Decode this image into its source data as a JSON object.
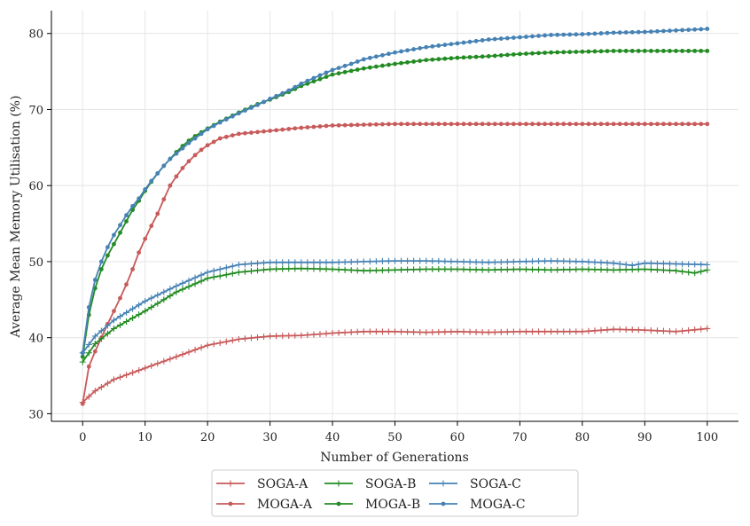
{
  "chart_data": {
    "type": "line",
    "title": "",
    "xlabel": "Number of Generations",
    "ylabel": "Average Mean Memory Utilisation (%)",
    "xlim": [
      -5,
      105
    ],
    "ylim": [
      29,
      83
    ],
    "xticks": [
      0,
      10,
      20,
      30,
      40,
      50,
      60,
      70,
      80,
      90,
      100
    ],
    "yticks": [
      30,
      40,
      50,
      60,
      70,
      80
    ],
    "grid": true,
    "legend_position": "bottom-center",
    "series": [
      {
        "name": "SOGA-A",
        "color": "#c85a5a",
        "marker": "plus",
        "points": [
          [
            0,
            31.5
          ],
          [
            2,
            33.0
          ],
          [
            5,
            34.5
          ],
          [
            10,
            36.0
          ],
          [
            15,
            37.5
          ],
          [
            20,
            39.0
          ],
          [
            25,
            39.8
          ],
          [
            30,
            40.2
          ],
          [
            35,
            40.3
          ],
          [
            40,
            40.6
          ],
          [
            45,
            40.8
          ],
          [
            50,
            40.8
          ],
          [
            55,
            40.7
          ],
          [
            60,
            40.8
          ],
          [
            65,
            40.7
          ],
          [
            70,
            40.8
          ],
          [
            75,
            40.8
          ],
          [
            80,
            40.8
          ],
          [
            85,
            41.1
          ],
          [
            90,
            41.0
          ],
          [
            95,
            40.8
          ],
          [
            100,
            41.2
          ]
        ]
      },
      {
        "name": "MOGA-A",
        "color": "#c85a5a",
        "marker": "dot",
        "points": [
          [
            0,
            31.3
          ],
          [
            1,
            36.2
          ],
          [
            2,
            38.2
          ],
          [
            3,
            40.0
          ],
          [
            4,
            41.8
          ],
          [
            5,
            43.5
          ],
          [
            6,
            45.2
          ],
          [
            7,
            47.0
          ],
          [
            8,
            49.0
          ],
          [
            9,
            51.2
          ],
          [
            10,
            53.0
          ],
          [
            11,
            54.7
          ],
          [
            12,
            56.3
          ],
          [
            13,
            58.2
          ],
          [
            14,
            60.0
          ],
          [
            15,
            61.2
          ],
          [
            16,
            62.3
          ],
          [
            17,
            63.2
          ],
          [
            18,
            64.0
          ],
          [
            19,
            64.7
          ],
          [
            20,
            65.3
          ],
          [
            22,
            66.2
          ],
          [
            25,
            66.8
          ],
          [
            30,
            67.2
          ],
          [
            35,
            67.6
          ],
          [
            40,
            67.9
          ],
          [
            45,
            68.0
          ],
          [
            50,
            68.1
          ],
          [
            60,
            68.1
          ],
          [
            70,
            68.1
          ],
          [
            80,
            68.1
          ],
          [
            90,
            68.1
          ],
          [
            100,
            68.1
          ]
        ]
      },
      {
        "name": "SOGA-B",
        "color": "#228b22",
        "marker": "plus",
        "points": [
          [
            0,
            36.8
          ],
          [
            2,
            39.2
          ],
          [
            5,
            41.2
          ],
          [
            10,
            43.5
          ],
          [
            15,
            46.0
          ],
          [
            20,
            47.8
          ],
          [
            25,
            48.6
          ],
          [
            30,
            49.0
          ],
          [
            35,
            49.1
          ],
          [
            40,
            49.0
          ],
          [
            45,
            48.8
          ],
          [
            50,
            48.9
          ],
          [
            55,
            49.0
          ],
          [
            60,
            49.0
          ],
          [
            65,
            48.9
          ],
          [
            70,
            49.0
          ],
          [
            75,
            48.9
          ],
          [
            80,
            49.0
          ],
          [
            85,
            48.9
          ],
          [
            90,
            49.0
          ],
          [
            95,
            48.8
          ],
          [
            98,
            48.5
          ],
          [
            100,
            48.9
          ]
        ]
      },
      {
        "name": "MOGA-B",
        "color": "#228b22",
        "marker": "dot",
        "points": [
          [
            0,
            37.5
          ],
          [
            1,
            43.0
          ],
          [
            2,
            46.5
          ],
          [
            3,
            49.0
          ],
          [
            4,
            50.8
          ],
          [
            5,
            52.3
          ],
          [
            6,
            53.8
          ],
          [
            7,
            55.3
          ],
          [
            8,
            56.8
          ],
          [
            9,
            58.0
          ],
          [
            10,
            59.3
          ],
          [
            11,
            60.5
          ],
          [
            12,
            61.6
          ],
          [
            13,
            62.6
          ],
          [
            14,
            63.5
          ],
          [
            15,
            64.4
          ],
          [
            16,
            65.2
          ],
          [
            17,
            65.9
          ],
          [
            18,
            66.5
          ],
          [
            19,
            67.0
          ],
          [
            20,
            67.5
          ],
          [
            22,
            68.4
          ],
          [
            25,
            69.6
          ],
          [
            28,
            70.7
          ],
          [
            30,
            71.3
          ],
          [
            33,
            72.3
          ],
          [
            35,
            73.1
          ],
          [
            38,
            74.0
          ],
          [
            40,
            74.6
          ],
          [
            45,
            75.4
          ],
          [
            50,
            76.0
          ],
          [
            55,
            76.5
          ],
          [
            60,
            76.8
          ],
          [
            65,
            77.0
          ],
          [
            70,
            77.3
          ],
          [
            75,
            77.5
          ],
          [
            80,
            77.6
          ],
          [
            85,
            77.7
          ],
          [
            90,
            77.7
          ],
          [
            95,
            77.7
          ],
          [
            100,
            77.7
          ]
        ]
      },
      {
        "name": "SOGA-C",
        "color": "#4682b4",
        "marker": "plus",
        "points": [
          [
            0,
            38.0
          ],
          [
            2,
            40.2
          ],
          [
            5,
            42.3
          ],
          [
            10,
            44.8
          ],
          [
            15,
            46.8
          ],
          [
            20,
            48.6
          ],
          [
            25,
            49.6
          ],
          [
            30,
            49.9
          ],
          [
            35,
            49.9
          ],
          [
            40,
            49.9
          ],
          [
            45,
            50.0
          ],
          [
            50,
            50.1
          ],
          [
            55,
            50.1
          ],
          [
            60,
            50.0
          ],
          [
            65,
            49.9
          ],
          [
            70,
            50.0
          ],
          [
            75,
            50.1
          ],
          [
            80,
            50.0
          ],
          [
            85,
            49.8
          ],
          [
            88,
            49.5
          ],
          [
            90,
            49.8
          ],
          [
            95,
            49.7
          ],
          [
            100,
            49.6
          ]
        ]
      },
      {
        "name": "MOGA-C",
        "color": "#4682b4",
        "marker": "dot",
        "points": [
          [
            0,
            38.0
          ],
          [
            1,
            44.0
          ],
          [
            2,
            47.6
          ],
          [
            3,
            50.0
          ],
          [
            4,
            51.9
          ],
          [
            5,
            53.5
          ],
          [
            6,
            54.8
          ],
          [
            7,
            56.1
          ],
          [
            8,
            57.3
          ],
          [
            9,
            58.3
          ],
          [
            10,
            59.5
          ],
          [
            11,
            60.6
          ],
          [
            12,
            61.6
          ],
          [
            13,
            62.6
          ],
          [
            14,
            63.5
          ],
          [
            15,
            64.2
          ],
          [
            16,
            64.9
          ],
          [
            17,
            65.6
          ],
          [
            18,
            66.2
          ],
          [
            19,
            66.8
          ],
          [
            20,
            67.4
          ],
          [
            22,
            68.3
          ],
          [
            25,
            69.5
          ],
          [
            28,
            70.6
          ],
          [
            30,
            71.4
          ],
          [
            33,
            72.5
          ],
          [
            35,
            73.4
          ],
          [
            38,
            74.5
          ],
          [
            40,
            75.2
          ],
          [
            43,
            76.0
          ],
          [
            45,
            76.6
          ],
          [
            50,
            77.5
          ],
          [
            55,
            78.2
          ],
          [
            60,
            78.7
          ],
          [
            65,
            79.2
          ],
          [
            70,
            79.5
          ],
          [
            75,
            79.8
          ],
          [
            80,
            79.9
          ],
          [
            85,
            80.1
          ],
          [
            90,
            80.2
          ],
          [
            95,
            80.4
          ],
          [
            100,
            80.6
          ]
        ]
      }
    ]
  }
}
